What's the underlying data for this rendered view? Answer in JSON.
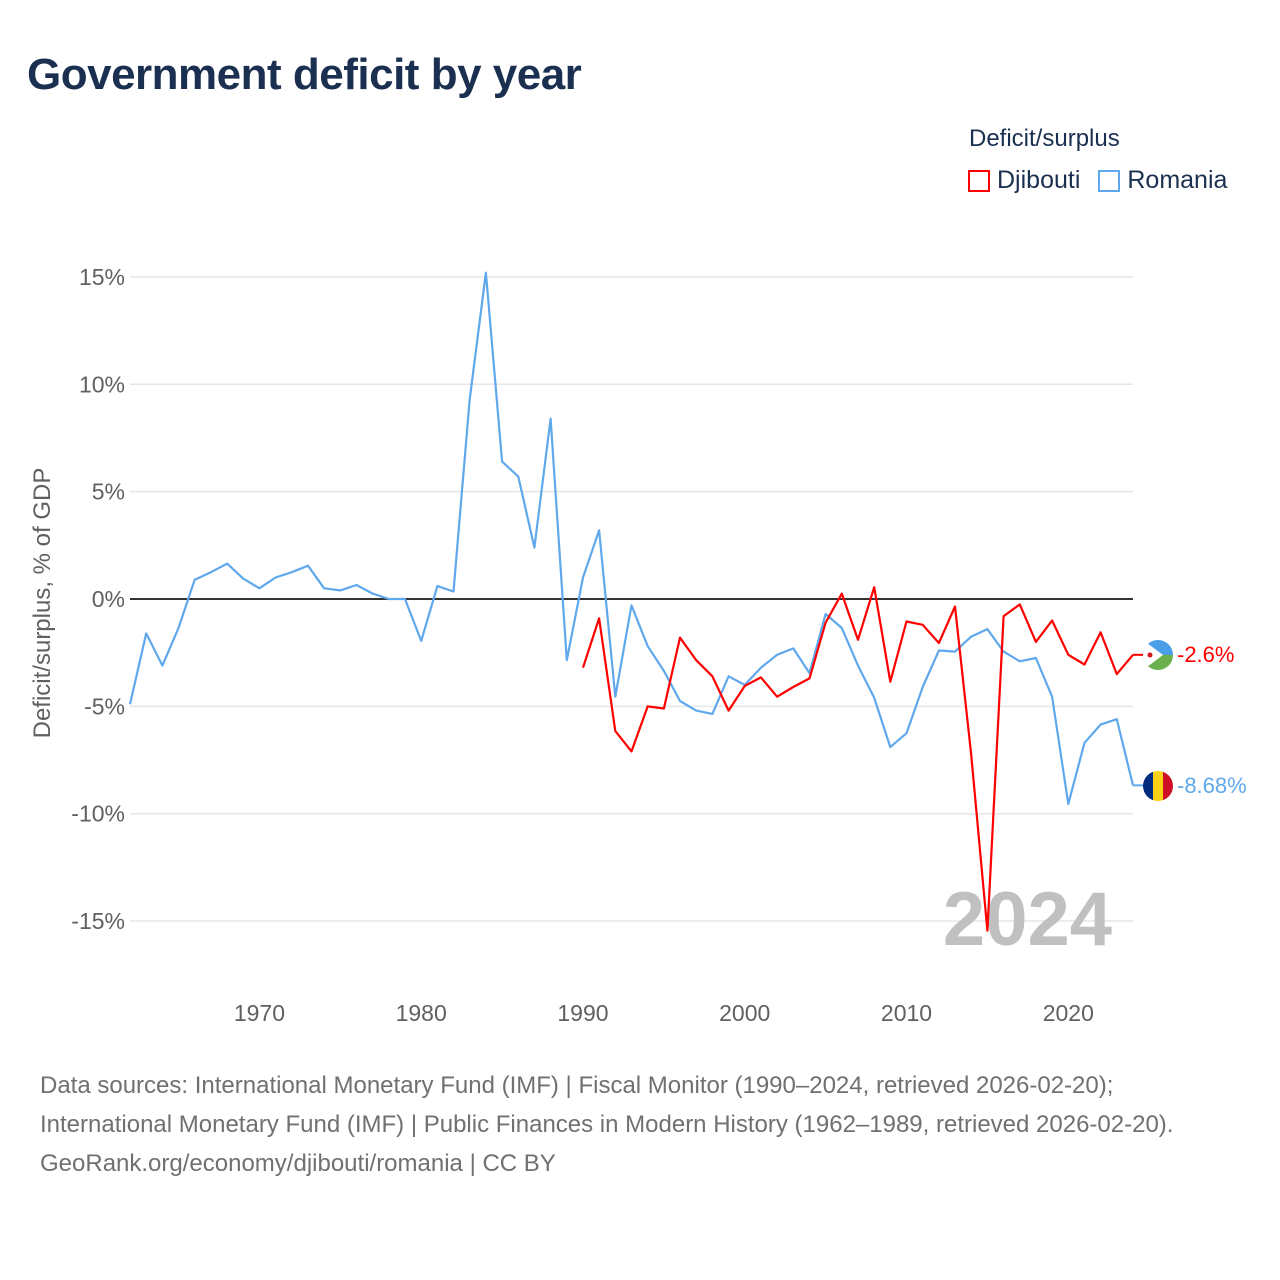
{
  "title": "Government deficit by year",
  "legend_title": "Deficit/surplus",
  "footer": {
    "sources": "Data sources: International Monetary Fund (IMF) | Fiscal Monitor (1990–2024, retrieved 2026-02-20); International Monetary Fund (IMF) | Public Finances in Modern History (1962–1989, retrieved 2026-02-20).",
    "credit": "GeoRank.org/economy/djibouti/romania | CC BY"
  },
  "chart_data": {
    "type": "line",
    "title": "Government deficit by year",
    "xlabel": "",
    "ylabel": "Deficit/surplus, % of GDP",
    "xlim": [
      1962,
      2024
    ],
    "ylim": [
      -17,
      16.5
    ],
    "yticks": [
      15,
      10,
      5,
      0,
      -5,
      -10,
      -15
    ],
    "ytick_labels": [
      "15%",
      "10%",
      "5%",
      "0%",
      "-5%",
      "-10%",
      "-15%"
    ],
    "xticks": [
      1970,
      1980,
      1990,
      2000,
      2010,
      2020
    ],
    "xtick_labels": [
      "1970",
      "1980",
      "1990",
      "2000",
      "2010",
      "2020"
    ],
    "year_watermark": "2024",
    "grid": true,
    "legend_position": "top-right",
    "series": [
      {
        "name": "Djibouti",
        "color": "#ff0000",
        "end_label": "-2.6%",
        "x": [
          1990,
          1991,
          1992,
          1993,
          1994,
          1995,
          1996,
          1997,
          1998,
          1999,
          2000,
          2001,
          2002,
          2003,
          2004,
          2005,
          2006,
          2007,
          2008,
          2009,
          2010,
          2011,
          2012,
          2013,
          2014,
          2015,
          2016,
          2017,
          2018,
          2019,
          2020,
          2021,
          2022,
          2023,
          2024
        ],
        "values": [
          -3.2,
          -0.9,
          -6.15,
          -7.1,
          -5.0,
          -5.1,
          -1.8,
          -2.85,
          -3.6,
          -5.2,
          -4.05,
          -3.65,
          -4.55,
          -4.1,
          -3.7,
          -1.1,
          0.25,
          -1.9,
          0.55,
          -3.85,
          -1.05,
          -1.2,
          -2.05,
          -0.35,
          -7.25,
          -15.45,
          -0.8,
          -0.25,
          -2.0,
          -1.0,
          -2.6,
          -3.05,
          -1.55,
          -3.5,
          -2.6
        ]
      },
      {
        "name": "Romania",
        "color": "#5fa8ec",
        "end_label": "-8.68%",
        "x": [
          1962,
          1963,
          1964,
          1965,
          1966,
          1967,
          1968,
          1969,
          1970,
          1971,
          1972,
          1973,
          1974,
          1975,
          1976,
          1977,
          1978,
          1979,
          1980,
          1981,
          1982,
          1983,
          1984,
          1985,
          1986,
          1987,
          1988,
          1989,
          1990,
          1991,
          1992,
          1993,
          1994,
          1995,
          1996,
          1997,
          1998,
          1999,
          2000,
          2001,
          2002,
          2003,
          2004,
          2005,
          2006,
          2007,
          2008,
          2009,
          2010,
          2011,
          2012,
          2013,
          2014,
          2015,
          2016,
          2017,
          2018,
          2019,
          2020,
          2021,
          2022,
          2023,
          2024
        ],
        "values": [
          -4.9,
          -1.6,
          -3.1,
          -1.35,
          0.9,
          1.25,
          1.65,
          0.95,
          0.5,
          1.0,
          1.25,
          1.55,
          0.5,
          0.4,
          0.65,
          0.25,
          0.0,
          0.0,
          -1.95,
          0.6,
          0.35,
          9.3,
          15.2,
          6.4,
          5.7,
          2.4,
          8.4,
          -2.85,
          1.0,
          3.2,
          -4.55,
          -0.3,
          -2.2,
          -3.35,
          -4.75,
          -5.2,
          -5.35,
          -3.6,
          -4.0,
          -3.2,
          -2.6,
          -2.3,
          -3.45,
          -0.7,
          -1.35,
          -3.1,
          -4.6,
          -6.9,
          -6.25,
          -4.1,
          -2.4,
          -2.45,
          -1.75,
          -1.4,
          -2.45,
          -2.9,
          -2.75,
          -4.55,
          -9.55,
          -6.7,
          -5.85,
          -5.6,
          -8.68
        ]
      }
    ]
  }
}
